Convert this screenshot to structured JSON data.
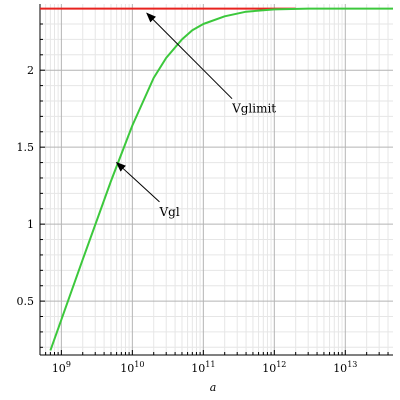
{
  "chart_data": {
    "type": "line",
    "xlabel": "a",
    "ylabel": "",
    "xscale": "log",
    "xlim": [
      500000000,
      47000000000000.0
    ],
    "ylim": [
      0.15,
      2.43
    ],
    "grid": true,
    "x_ticks": [
      {
        "value": 1000000000.0,
        "base": "10",
        "exp": "9"
      },
      {
        "value": 10000000000.0,
        "base": "10",
        "exp": "10"
      },
      {
        "value": 100000000000.0,
        "base": "10",
        "exp": "11"
      },
      {
        "value": 1000000000000.0,
        "base": "10",
        "exp": "12"
      },
      {
        "value": 10000000000000.0,
        "base": "10",
        "exp": "13"
      }
    ],
    "y_ticks": [
      {
        "value": 0.5,
        "label": "0.5"
      },
      {
        "value": 1,
        "label": "1"
      },
      {
        "value": 1.5,
        "label": "1.5"
      },
      {
        "value": 2,
        "label": "2"
      }
    ],
    "series": [
      {
        "name": "Vglimit",
        "color": "#e8231f",
        "x": [
          500000000,
          2000000000000.0
        ],
        "y": [
          2.4,
          2.4
        ]
      },
      {
        "name": "Vgl",
        "color": "#3cc83c",
        "x": [
          700000000,
          1000000000.0,
          2000000000.0,
          5000000000.0,
          10000000000.0,
          20000000000.0,
          30000000000.0,
          50000000000.0,
          70000000000.0,
          100000000000.0,
          200000000000.0,
          400000000000.0,
          1000000000000.0,
          3000000000000.0,
          10000000000000.0,
          47000000000000.0
        ],
        "y": [
          0.18,
          0.38,
          0.77,
          1.28,
          1.64,
          1.95,
          2.08,
          2.2,
          2.26,
          2.3,
          2.35,
          2.38,
          2.395,
          2.4,
          2.4,
          2.4
        ]
      }
    ],
    "annotations": [
      {
        "text": "Vglimit",
        "point_x": 16000000000.0,
        "point_y": 2.37,
        "text_x": 400000000000.0,
        "text_y": 1.75
      },
      {
        "text": "Vgl",
        "point_x": 6000000000.0,
        "point_y": 1.4,
        "text_x": 38000000000.0,
        "text_y": 1.08
      }
    ]
  }
}
